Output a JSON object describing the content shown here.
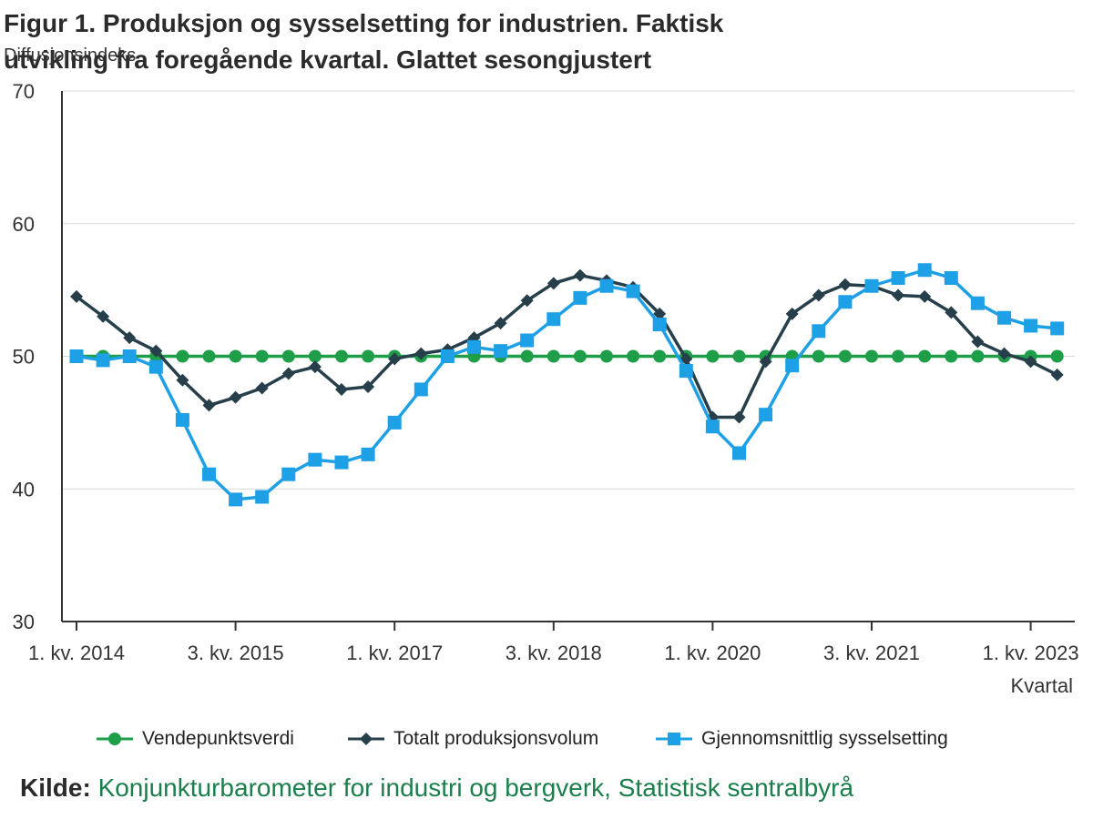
{
  "header": {
    "title": "Figur 1. Produksjon og sysselsetting for industrien. Faktisk utvikling fra foregående kvartal. Glattet sesongjustert",
    "ylabel": "Diffusjonsindeks"
  },
  "source": {
    "label": "Kilde:",
    "text": "Konjunkturbarometer for industri og bergverk, Statistisk sentralbyrå"
  },
  "colors": {
    "vendepunkt": "#1e9e48",
    "produksjon": "#263f4a",
    "sysselsetting": "#1ea0e6",
    "grid": "#d9d9d9",
    "axis": "#333333"
  },
  "chart_data": {
    "type": "line",
    "xlabel": "Kvartal",
    "ylabel": "Diffusjonsindeks",
    "ylim": [
      30,
      70
    ],
    "yticks": [
      30,
      40,
      50,
      60,
      70
    ],
    "grid": true,
    "legend_position": "bottom",
    "x_tick_labels": [
      {
        "index": 0,
        "label": "1. kv. 2014"
      },
      {
        "index": 6,
        "label": "3. kv. 2015"
      },
      {
        "index": 12,
        "label": "1. kv. 2017"
      },
      {
        "index": 18,
        "label": "3. kv. 2018"
      },
      {
        "index": 24,
        "label": "1. kv. 2020"
      },
      {
        "index": 30,
        "label": "3. kv. 2021"
      },
      {
        "index": 36,
        "label": "1. kv. 2023"
      }
    ],
    "x_count": 38,
    "series": [
      {
        "name": "Vendepunktsverdi",
        "marker": "circle",
        "color_key": "vendepunkt",
        "values": [
          50,
          50,
          50,
          50,
          50,
          50,
          50,
          50,
          50,
          50,
          50,
          50,
          50,
          50,
          50,
          50,
          50,
          50,
          50,
          50,
          50,
          50,
          50,
          50,
          50,
          50,
          50,
          50,
          50,
          50,
          50,
          50,
          50,
          50,
          50,
          50,
          50,
          50
        ]
      },
      {
        "name": "Totalt produksjonsvolum",
        "marker": "diamond",
        "color_key": "produksjon",
        "values": [
          54.5,
          53.0,
          51.4,
          50.4,
          48.2,
          46.3,
          46.9,
          47.6,
          48.7,
          49.2,
          47.5,
          47.7,
          49.8,
          50.2,
          50.5,
          51.4,
          52.5,
          54.2,
          55.5,
          56.1,
          55.7,
          55.2,
          53.2,
          49.8,
          45.4,
          45.4,
          49.6,
          53.2,
          54.6,
          55.4,
          55.3,
          54.6,
          54.5,
          53.3,
          51.1,
          50.2,
          49.6,
          48.6
        ]
      },
      {
        "name": "Gjennomsnittlig sysselsetting",
        "marker": "square",
        "color_key": "sysselsetting",
        "values": [
          50.0,
          49.7,
          50.0,
          49.2,
          45.2,
          41.1,
          39.2,
          39.4,
          41.1,
          42.2,
          42.0,
          42.6,
          45.0,
          47.5,
          50.0,
          50.7,
          50.4,
          51.2,
          52.8,
          54.4,
          55.3,
          54.9,
          52.4,
          48.9,
          44.7,
          42.7,
          45.6,
          49.3,
          51.9,
          54.1,
          55.3,
          55.9,
          56.5,
          55.9,
          54.0,
          52.9,
          52.3,
          52.1
        ]
      }
    ]
  }
}
